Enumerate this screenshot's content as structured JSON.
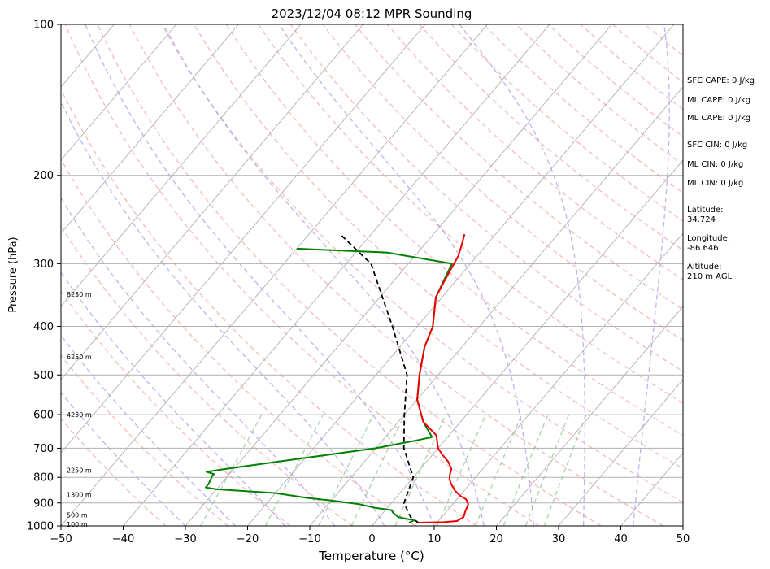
{
  "chart_data": {
    "type": "skew-t",
    "title": "2023/12/04 08:12 MPR Sounding",
    "xlabel": "Temperature (°C)",
    "ylabel": "Pressure (hPa)",
    "xlim": [
      -50,
      50
    ],
    "ylim": [
      1000,
      100
    ],
    "y_scale": "log",
    "x_ticks": [
      -50,
      -40,
      -30,
      -20,
      -10,
      0,
      10,
      20,
      30,
      40,
      50
    ],
    "x_tick_labels": [
      "−50",
      "−40",
      "−30",
      "−20",
      "−10",
      "0",
      "10",
      "20",
      "30",
      "40",
      "50"
    ],
    "y_ticks": [
      1000,
      900,
      800,
      700,
      600,
      500,
      400,
      300,
      200,
      100
    ],
    "y_tick_labels": [
      "1000",
      "900",
      "800",
      "700",
      "600",
      "500",
      "400",
      "300",
      "200",
      "100"
    ],
    "grid": true,
    "temperature": {
      "color": "#ee0000",
      "points": [
        {
          "p": 985,
          "t": 7.0
        },
        {
          "p": 983,
          "t": 11.0
        },
        {
          "p": 978,
          "t": 13.0
        },
        {
          "p": 960,
          "t": 13.5
        },
        {
          "p": 935,
          "t": 13.0
        },
        {
          "p": 905,
          "t": 12.5
        },
        {
          "p": 885,
          "t": 11.5
        },
        {
          "p": 870,
          "t": 10.0
        },
        {
          "p": 850,
          "t": 8.5
        },
        {
          "p": 825,
          "t": 7.0
        },
        {
          "p": 805,
          "t": 6.0
        },
        {
          "p": 790,
          "t": 5.5
        },
        {
          "p": 770,
          "t": 5.0
        },
        {
          "p": 745,
          "t": 3.5
        },
        {
          "p": 720,
          "t": 1.5
        },
        {
          "p": 700,
          "t": 0.0
        },
        {
          "p": 680,
          "t": -1.0
        },
        {
          "p": 660,
          "t": -2.0
        },
        {
          "p": 620,
          "t": -6.0
        },
        {
          "p": 560,
          "t": -10.0
        },
        {
          "p": 500,
          "t": -13.0
        },
        {
          "p": 440,
          "t": -16.0
        },
        {
          "p": 400,
          "t": -17.5
        },
        {
          "p": 350,
          "t": -21.0
        },
        {
          "p": 320,
          "t": -22.0
        },
        {
          "p": 290,
          "t": -23.0
        },
        {
          "p": 275,
          "t": -24.0
        },
        {
          "p": 262,
          "t": -25.0
        }
      ]
    },
    "dewpoint": {
      "color": "#008000",
      "points": [
        {
          "p": 985,
          "t": 5.5
        },
        {
          "p": 975,
          "t": 6.0
        },
        {
          "p": 960,
          "t": 3.0
        },
        {
          "p": 940,
          "t": 1.5
        },
        {
          "p": 930,
          "t": 1.0
        },
        {
          "p": 920,
          "t": -2.0
        },
        {
          "p": 905,
          "t": -5.0
        },
        {
          "p": 890,
          "t": -10.0
        },
        {
          "p": 880,
          "t": -14.0
        },
        {
          "p": 860,
          "t": -20.0
        },
        {
          "p": 845,
          "t": -30.0
        },
        {
          "p": 838,
          "t": -32.0
        },
        {
          "p": 825,
          "t": -32.0
        },
        {
          "p": 795,
          "t": -32.5
        },
        {
          "p": 788,
          "t": -32.5
        },
        {
          "p": 780,
          "t": -34.0
        },
        {
          "p": 765,
          "t": -30.0
        },
        {
          "p": 700,
          "t": -10.0
        },
        {
          "p": 675,
          "t": -4.5
        },
        {
          "p": 665,
          "t": -2.5
        },
        {
          "p": 620,
          "t": -6.0
        },
        {
          "p": 560,
          "t": -10.0
        },
        {
          "p": 500,
          "t": -13.0
        },
        {
          "p": 440,
          "t": -16.0
        },
        {
          "p": 400,
          "t": -17.5
        },
        {
          "p": 350,
          "t": -21.0
        },
        {
          "p": 300,
          "t": -23.0
        },
        {
          "p": 285,
          "t": -35.0
        },
        {
          "p": 280,
          "t": -50.0
        }
      ]
    },
    "parcel": {
      "color": "#000000",
      "style": "dashed",
      "points": [
        {
          "p": 985,
          "t": 7.0
        },
        {
          "p": 960,
          "t": 5.0
        },
        {
          "p": 900,
          "t": 2.0
        },
        {
          "p": 800,
          "t": 0.0
        },
        {
          "p": 700,
          "t": -5.5
        },
        {
          "p": 600,
          "t": -10.0
        },
        {
          "p": 500,
          "t": -15.0
        },
        {
          "p": 400,
          "t": -24.0
        },
        {
          "p": 300,
          "t": -36.0
        },
        {
          "p": 262,
          "t": -45.0
        }
      ]
    },
    "height_labels": [
      {
        "text": "100 m",
        "p": 993
      },
      {
        "text": "500 m",
        "p": 951
      },
      {
        "text": "1300 m",
        "p": 866
      },
      {
        "text": "2250 m",
        "p": 775
      },
      {
        "text": "4250 m",
        "p": 600
      },
      {
        "text": "6250 m",
        "p": 460
      },
      {
        "text": "8250 m",
        "p": 345
      }
    ],
    "info_panel": [
      "SFC CAPE: 0 J/kg",
      "ML CAPE: 0 J/kg",
      "ML CAPE: 0 J/kg",
      "SFC CIN: 0 J/kg",
      "ML CIN: 0 J/kg",
      "ML CIN: 0 J/kg",
      "Latitude:",
      "34.724",
      "Longitude:",
      "-86.646",
      "Altitude:",
      "210 m AGL"
    ]
  }
}
